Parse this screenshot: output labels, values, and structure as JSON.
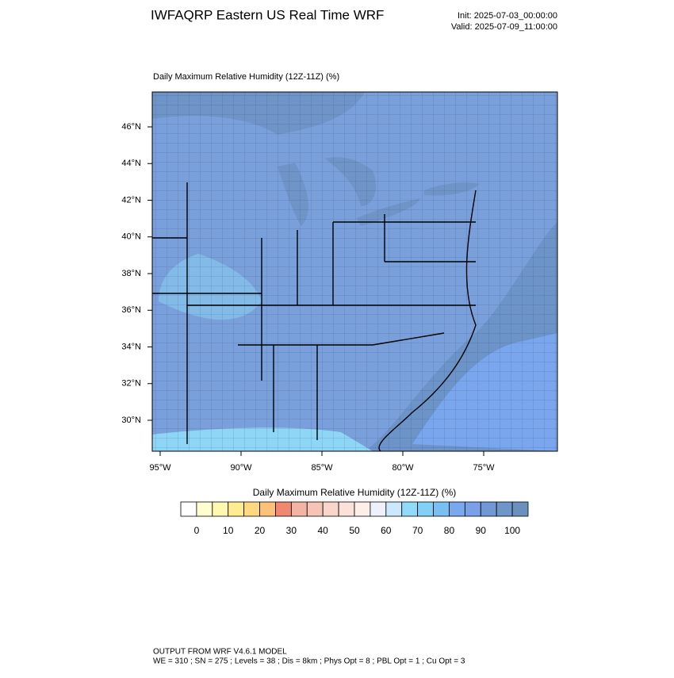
{
  "header": {
    "title": "IWFAQRP Eastern US Real Time WRF",
    "init": "Init: 2025-07-03_00:00:00",
    "valid": "Valid: 2025-07-09_11:00:00"
  },
  "map": {
    "label": "Daily Maximum Relative Humidity (12Z-11Z)   (%)",
    "lat_labels": [
      "46°N",
      "44°N",
      "42°N",
      "40°N",
      "38°N",
      "36°N",
      "34°N",
      "32°N",
      "30°N"
    ],
    "lon_labels": [
      "95°W",
      "90°W",
      "85°W",
      "80°W",
      "75°W"
    ]
  },
  "colorbar": {
    "title": "Daily Maximum Relative Humidity (12Z-11Z)  (%)",
    "colors": [
      "#ffffff",
      "#ffffd0",
      "#fff8b0",
      "#ffec90",
      "#ffd880",
      "#fdc27a",
      "#f08870",
      "#f4b4a4",
      "#f6c4b6",
      "#f8d6ca",
      "#fae2d8",
      "#fcefe8",
      "#eef0fc",
      "#cce8fc",
      "#90dcf8",
      "#80d0f8",
      "#78c0f4",
      "#78a8ee",
      "#7aa0e8",
      "#7098d6",
      "#6e96c8",
      "#6a90bc"
    ],
    "labels": [
      0,
      10,
      20,
      30,
      40,
      50,
      60,
      70,
      80,
      90,
      100
    ]
  },
  "footer": {
    "line1": "OUTPUT FROM WRF V4.6.1 MODEL",
    "line2": "WE = 310 ; SN = 275 ; Levels = 38 ; Dis = 8km ; Phys Opt = 8 ; PBL Opt = 1 ; Cu Opt = 3"
  }
}
